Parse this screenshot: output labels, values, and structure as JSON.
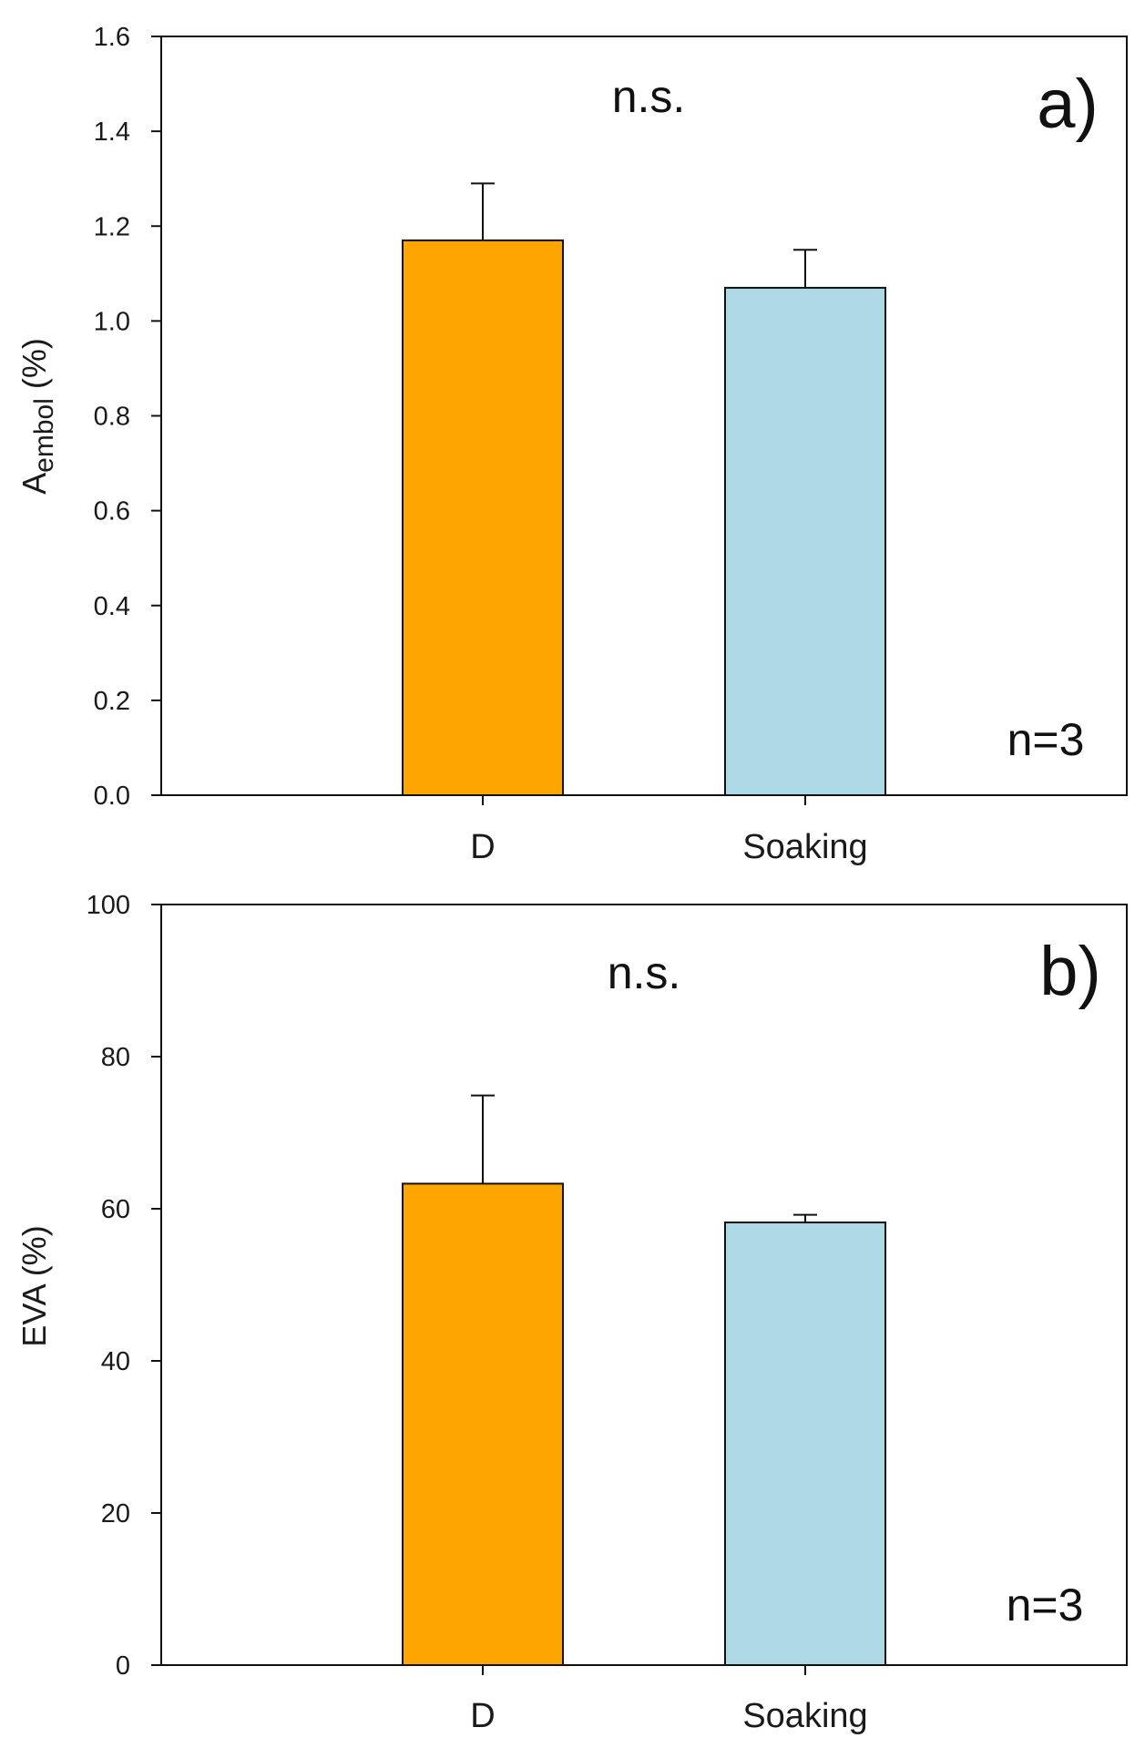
{
  "chart_data": [
    {
      "type": "bar",
      "panel_label": "a)",
      "ylabel_main": "A",
      "ylabel_sub": "embol",
      "ylabel_unit": " (%)",
      "xlabel": "",
      "categories": [
        "D",
        "Soaking"
      ],
      "values": [
        1.17,
        1.07
      ],
      "errors": [
        0.12,
        0.08
      ],
      "colors": [
        "#FFA500",
        "#ADD8E6"
      ],
      "ylim": [
        0,
        1.6
      ],
      "yticks": [
        0.0,
        0.2,
        0.4,
        0.6,
        0.8,
        1.0,
        1.2,
        1.4,
        1.6
      ],
      "ytick_labels": [
        "0.0",
        "0.2",
        "0.4",
        "0.6",
        "0.8",
        "1.0",
        "1.2",
        "1.4",
        "1.6"
      ],
      "significance": "n.s.",
      "sample_size": "n=3"
    },
    {
      "type": "bar",
      "panel_label": "b)",
      "ylabel_main": "EVA (%)",
      "xlabel": "",
      "categories": [
        "D",
        "Soaking"
      ],
      "values": [
        63.3,
        58.2
      ],
      "errors": [
        11.6,
        1.0
      ],
      "colors": [
        "#FFA500",
        "#ADD8E6"
      ],
      "ylim": [
        0,
        100
      ],
      "yticks": [
        0,
        20,
        40,
        60,
        80,
        100
      ],
      "ytick_labels": [
        "0",
        "20",
        "40",
        "60",
        "80",
        "100"
      ],
      "significance": "n.s.",
      "sample_size": "n=3"
    }
  ]
}
